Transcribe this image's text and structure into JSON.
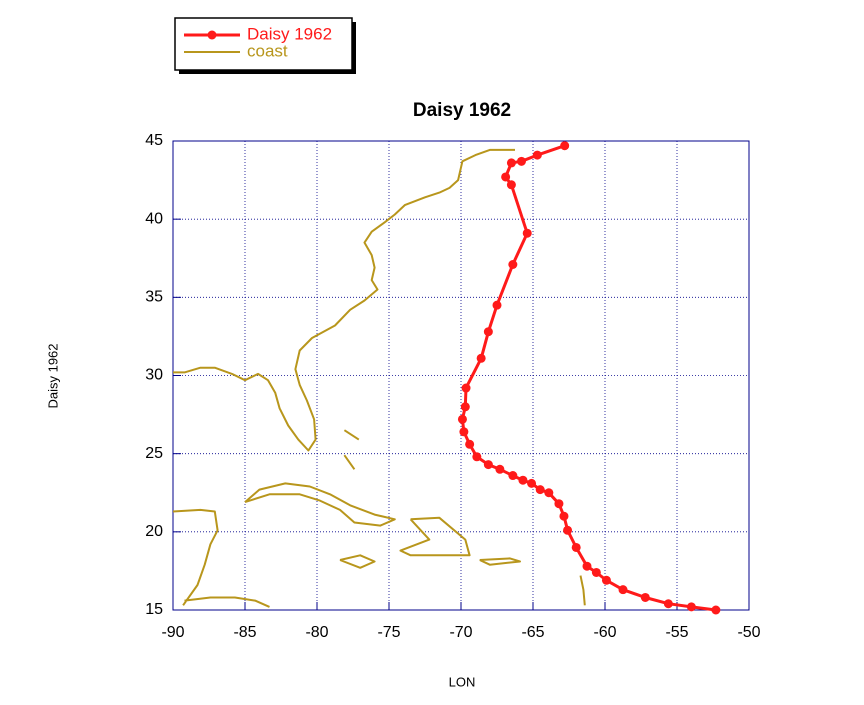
{
  "chart_data": {
    "type": "line",
    "title": "Daisy 1962",
    "x_label": "LON",
    "y_label": "Daisy 1962",
    "xlim": [
      -90,
      -50
    ],
    "ylim": [
      15,
      45
    ],
    "xticks": [
      -90,
      -85,
      -80,
      -75,
      -70,
      -65,
      -60,
      -55,
      -50
    ],
    "yticks": [
      15,
      20,
      25,
      30,
      35,
      40,
      45
    ],
    "grid": true,
    "grid_color": "#00008b",
    "legend": "top-left",
    "series": [
      {
        "name": "Daisy 1962",
        "color": "#ff1a1a",
        "markers": true,
        "x": [
          -52.3,
          -54.0,
          -55.6,
          -57.2,
          -58.75,
          -59.9,
          -60.6,
          -61.25,
          -62.0,
          -62.6,
          -62.85,
          -63.2,
          -63.9,
          -64.5,
          -65.1,
          -65.7,
          -66.4,
          -67.3,
          -68.1,
          -68.9,
          -69.4,
          -69.8,
          -69.9,
          -69.7,
          -69.65,
          -68.6,
          -68.1,
          -67.5,
          -66.4,
          -65.4,
          -66.5,
          -66.9,
          -66.5,
          -65.8,
          -64.7,
          -62.8
        ],
        "values": [
          15.0,
          15.2,
          15.4,
          15.8,
          16.3,
          16.9,
          17.4,
          17.8,
          19.0,
          20.1,
          21.0,
          21.8,
          22.5,
          22.7,
          23.1,
          23.3,
          23.6,
          24.0,
          24.3,
          24.8,
          25.6,
          26.4,
          27.2,
          28.0,
          29.2,
          31.1,
          32.8,
          34.5,
          37.1,
          39.1,
          42.2,
          42.7,
          43.6,
          43.7,
          44.1,
          44.7
        ]
      },
      {
        "name": "coast",
        "color": "#b8961c",
        "markers": false,
        "x": [
          -66.25,
          -68.0,
          -69.0,
          -69.9,
          -70.2,
          -70.8,
          -71.5,
          -72.5,
          -73.9,
          -74.6,
          -75.3,
          -76.2,
          -76.7,
          -76.2,
          -76.0,
          -76.2,
          -75.8,
          -76.7,
          -77.7,
          -78.75,
          -80.35,
          -81.2,
          -81.5,
          -81.2,
          -80.7,
          -80.2,
          -80.1,
          -80.6,
          -81.3,
          -82.0,
          -82.6,
          -82.9,
          -83.4,
          -84.1,
          -85.0,
          -85.9,
          -87.1,
          -88.1,
          -89.2,
          -90,
          null,
          -90,
          -88.1,
          -87.1,
          -86.9,
          -87.4,
          -87.8,
          -88.3,
          -89.3,
          null,
          -89.2,
          -87.4,
          -85.7,
          -84.3,
          -83.3,
          null,
          -85.0,
          -84.0,
          -82.2,
          -80.5,
          -79.1,
          -77.7,
          -76.0,
          -74.6,
          -75.6,
          -77.4,
          -78.4,
          -79.8,
          -81.2,
          -83.3,
          -85.0,
          null,
          -73.5,
          -71.5,
          -69.7,
          -69.4,
          -71.5,
          -73.5,
          -74.2,
          -72.2,
          -73.5,
          null,
          -78.4,
          -77.0,
          -76.0,
          -77.0,
          -78.4,
          null,
          -68.7,
          -66.6,
          -65.9,
          -68.0,
          -68.7,
          null,
          -78.1,
          -77.1,
          null,
          -78.1,
          -77.4,
          null,
          -61.7,
          -61.5,
          -61.4
        ],
        "values": [
          44.43,
          44.43,
          44.1,
          43.7,
          42.5,
          42.0,
          41.7,
          41.4,
          40.9,
          40.3,
          39.8,
          39.2,
          38.5,
          37.7,
          36.9,
          36.1,
          35.5,
          34.8,
          34.2,
          33.2,
          32.4,
          31.6,
          30.4,
          29.4,
          28.4,
          27.2,
          25.9,
          25.2,
          25.9,
          26.8,
          27.9,
          28.9,
          29.7,
          30.1,
          29.7,
          30.1,
          30.5,
          30.5,
          30.2,
          30.2,
          null,
          21.3,
          21.4,
          21.3,
          20.1,
          19.2,
          17.9,
          16.6,
          15.3,
          null,
          15.6,
          15.8,
          15.8,
          15.6,
          15.2,
          null,
          21.9,
          22.7,
          23.1,
          22.9,
          22.4,
          21.7,
          21.1,
          20.8,
          20.4,
          20.6,
          21.4,
          22.0,
          22.4,
          22.4,
          21.9,
          null,
          20.8,
          20.9,
          19.5,
          18.5,
          18.5,
          18.5,
          18.8,
          19.5,
          20.8,
          null,
          18.2,
          18.5,
          18.1,
          17.7,
          18.2,
          null,
          18.2,
          18.3,
          18.1,
          17.9,
          18.2,
          null,
          26.5,
          25.9,
          null,
          24.9,
          24.0,
          null,
          17.2,
          16.3,
          15.3
        ]
      }
    ]
  }
}
